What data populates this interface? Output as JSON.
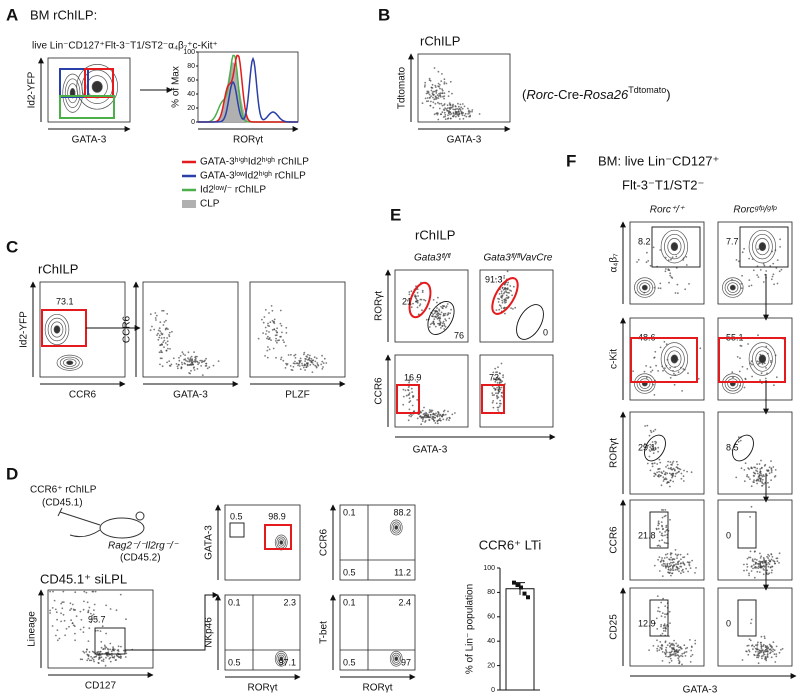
{
  "panels": {
    "A": {
      "label": "A",
      "title": "BM rChILP:",
      "gating": "live Lin⁻CD127⁺Flt-3⁻T1/ST2⁻α₄β₇⁺c-Kit⁺",
      "plot_y": "Id2-YFP",
      "plot_x": "GATA-3",
      "hist_y": "% of Max",
      "hist_x": "RORγt",
      "hist_yticks": [
        "0",
        "20",
        "40",
        "60",
        "80",
        "100"
      ],
      "legend": [
        {
          "name": "GATA-3ʰⁱᵍʰId2ʰⁱᵍʰ rChILP",
          "color": "#e41a1c"
        },
        {
          "name": "GATA-3ˡᵒʷId2ʰⁱᵍʰ rChILP",
          "color": "#2b3fa8"
        },
        {
          "name": "Id2ˡᵒʷ/⁻ rChILP",
          "color": "#4daf4a"
        },
        {
          "name": "CLP",
          "color": "#b0b0b0"
        }
      ]
    },
    "B": {
      "label": "B",
      "title": "rChILP",
      "y": "Tdtomato",
      "x": "GATA-3",
      "genotype": [
        "(",
        "Rorc",
        "-Cre-",
        "Rosa26",
        "Tdtomato",
        ")"
      ]
    },
    "C": {
      "label": "C",
      "title": "rChILP",
      "plots": [
        {
          "y": "Id2-YFP",
          "x": "CCR6",
          "gate": "73.1"
        },
        {
          "y": "CCR6",
          "x": "GATA-3"
        },
        {
          "x": "PLZF"
        }
      ]
    },
    "D": {
      "label": "D",
      "donor": [
        "CCR6⁺ rChILP",
        "(CD45.1)"
      ],
      "recipient": [
        "Rag2⁻/⁻Il2rg⁻/⁻",
        "(CD45.2)"
      ],
      "gate_title": "CD45.1⁺ siLPL",
      "gate_plot": {
        "y": "Lineage",
        "x": "CD127",
        "value": "95.7"
      },
      "grid": [
        {
          "y": "GATA-3",
          "numbers": [
            "0.5",
            "98.9"
          ]
        },
        {
          "y": "CCR6",
          "numbers": [
            "0.1",
            "88.2",
            "0.5",
            "11.2"
          ]
        },
        {
          "y": "NKp46",
          "numbers": [
            "0.1",
            "2.3",
            "0.5",
            "97.1"
          ]
        },
        {
          "y": "T-bet",
          "numbers": [
            "0.1",
            "2.4",
            "0.5",
            "97"
          ]
        }
      ],
      "grid_x": [
        "RORγt",
        "RORγt"
      ],
      "bar": {
        "title": "CCR6⁺ LTi",
        "ylabel": "% of Lin⁻ population",
        "yticks": [
          0,
          20,
          40,
          60,
          80,
          100
        ],
        "ylim": [
          0,
          100
        ],
        "value": 83,
        "error": 5,
        "points": [
          88,
          86,
          84,
          79,
          76
        ]
      }
    },
    "E": {
      "label": "E",
      "title": "rChILP",
      "headers": [
        "Gata3ᶠˡ/ᶠˡ",
        "Gata3ᶠˡ/ᶠˡVavCre"
      ],
      "rows": [
        "RORγt",
        "CCR6"
      ],
      "x": "GATA-3",
      "numbers": [
        [
          [
            "21",
            "76"
          ],
          [
            "91.3",
            "0"
          ]
        ],
        [
          [
            "16.9"
          ],
          [
            "73"
          ]
        ]
      ]
    },
    "F": {
      "label": "F",
      "title": [
        "BM: live Lin⁻CD127⁺",
        "Flt-3⁻T1/ST2⁻"
      ],
      "headers": [
        "Rorc⁺/⁺",
        "Rorcᵍᶠᵖ/ᵍᶠᵖ"
      ],
      "rows": [
        "α₄β₇",
        "c-Kit",
        "RORγt",
        "CCR6",
        "CD25"
      ],
      "x": "GATA-3",
      "numbers": [
        [
          "8.2",
          "7.7"
        ],
        [
          "48.6",
          "55.1"
        ],
        [
          "29.1",
          "8.5"
        ],
        [
          "21.8",
          "0"
        ],
        [
          "12.9",
          "0"
        ]
      ]
    }
  }
}
